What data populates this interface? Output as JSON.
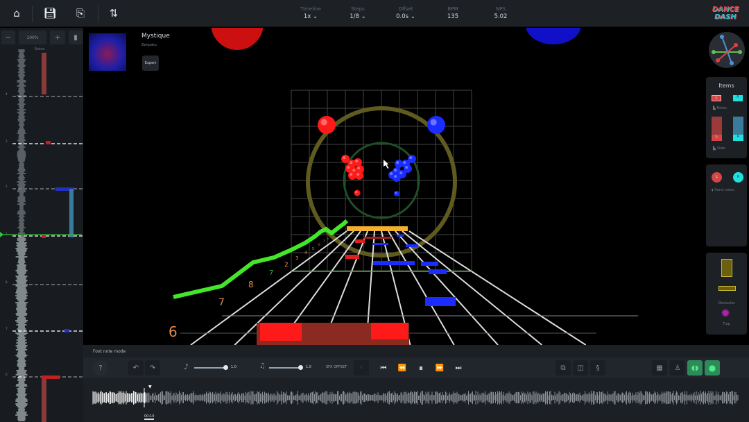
{
  "toolbar": {
    "icons": [
      "home-icon",
      "save-icon",
      "export-icon",
      "settings-sliders-icon"
    ],
    "fields": [
      {
        "label": "Timeline",
        "value": "1x",
        "dropdown": true
      },
      {
        "label": "Steps",
        "value": "1/8",
        "dropdown": true
      },
      {
        "label": "Offset",
        "value": "0.0s",
        "dropdown": true
      },
      {
        "label": "BPM",
        "value": "135",
        "dropdown": false
      },
      {
        "label": "NPS",
        "value": "5.02",
        "dropdown": false
      }
    ],
    "logo": {
      "line1": "DANCE",
      "line2": "DASH"
    }
  },
  "left_panel": {
    "zoom_minus": "−",
    "zoom_value": "100%",
    "zoom_plus": "+",
    "notes_header": "Notes",
    "beat_labels": [
      "4",
      "3",
      "2",
      "1",
      "8",
      "7",
      "6"
    ]
  },
  "song": {
    "title": "Mystique",
    "artist": "Zenpaku",
    "difficulty": "Expert"
  },
  "scene": {
    "beat_numbers": [
      "6",
      "7",
      "8",
      "7",
      "2",
      "3",
      "4",
      "5",
      "6",
      "7",
      "8"
    ],
    "colors": {
      "left": "#ff1a1a",
      "right": "#1a2cff",
      "obstacle": "#f0b030",
      "trail": "#44e62a"
    }
  },
  "items_panel": {
    "title": "Items",
    "left_label": "L",
    "right_label": "R",
    "notes_label": "Notes",
    "slide_label": "Slide",
    "hand_notes_label": "Hand notes",
    "obstacles_label": "Obstacles",
    "trap_label": "Trap"
  },
  "bottom": {
    "mode_label": "Foot note mode",
    "volume1": "1.0",
    "volume2": "1.0",
    "sfx_offset_label": "SFX OFFSET",
    "sfx_offset_value": "0",
    "current_time": "00:10"
  }
}
